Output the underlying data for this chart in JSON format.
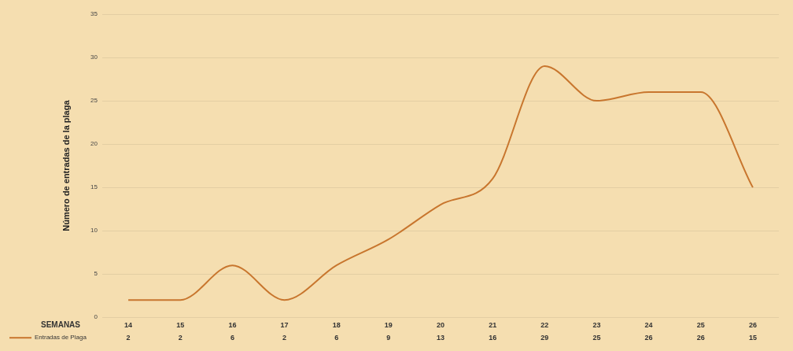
{
  "chart_data": {
    "type": "line",
    "ylabel": "Número de entradas de la plaga",
    "xlabel": "SEMANAS",
    "categories": [
      "14",
      "15",
      "16",
      "17",
      "18",
      "19",
      "20",
      "21",
      "22",
      "23",
      "24",
      "25",
      "26"
    ],
    "series": [
      {
        "name": "Entradas de Plaga",
        "color": "#c8762e",
        "values": [
          2,
          2,
          6,
          2,
          6,
          9,
          13,
          16,
          29,
          25,
          26,
          26,
          15
        ]
      }
    ],
    "ylim": [
      0,
      35
    ],
    "yticks": [
      0,
      5,
      10,
      15,
      20,
      25,
      30,
      35
    ],
    "grid": "y",
    "legend": "bottom",
    "data_labels": true,
    "marker": "none",
    "line_style": "solid"
  }
}
